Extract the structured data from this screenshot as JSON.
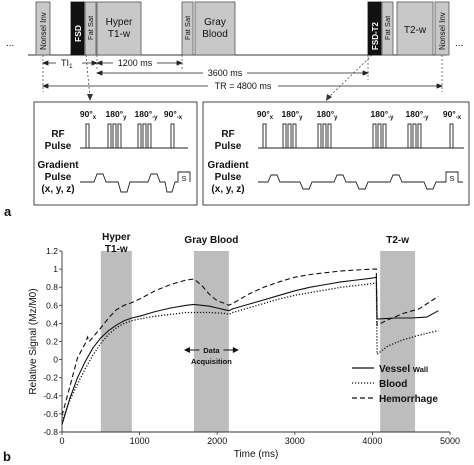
{
  "sequence": {
    "dots_left": "...",
    "dots_right": "...",
    "blocks": [
      {
        "id": "nonsel1",
        "label": "Nonsel Inv",
        "fill": "#c8c8c8",
        "text_color": "#111111",
        "rotated": true
      },
      {
        "id": "fsd1",
        "label": "FSD",
        "fill": "#111111",
        "text_color": "#ffffff",
        "rotated": true
      },
      {
        "id": "fatsat1",
        "label": "Fat Sat",
        "fill": "#c8c8c8",
        "text_color": "#111111",
        "rotated": true
      },
      {
        "id": "hyper",
        "label_line1": "Hyper",
        "label_line2": "T1-w",
        "fill": "#c8c8c8",
        "text_color": "#111111"
      },
      {
        "id": "fatsat2",
        "label": "Fat Sat",
        "fill": "#c8c8c8",
        "text_color": "#111111",
        "rotated": true
      },
      {
        "id": "gray",
        "label_line1": "Gray",
        "label_line2": "Blood",
        "fill": "#c8c8c8",
        "text_color": "#111111"
      },
      {
        "id": "fsdt2",
        "label": "FSD-T2",
        "fill": "#111111",
        "text_color": "#ffffff",
        "rotated": true
      },
      {
        "id": "fatsat3",
        "label": "Fat Sat",
        "fill": "#c8c8c8",
        "text_color": "#111111",
        "rotated": true
      },
      {
        "id": "t2w",
        "label": "T2-w",
        "fill": "#c8c8c8",
        "text_color": "#111111"
      },
      {
        "id": "nonsel2",
        "label": "Nonsel Inv",
        "fill": "#c8c8c8",
        "text_color": "#111111",
        "rotated": true
      }
    ],
    "timing": {
      "ti": "TI",
      "ti_sub": "1",
      "t1200": "1200 ms",
      "t3600": "3600 ms",
      "tr": "TR = 4800 ms"
    }
  },
  "pulse_left": {
    "angles": [
      {
        "deg": "90°",
        "sub": "x"
      },
      {
        "deg": "180°",
        "sub": "y"
      },
      {
        "deg": "180°",
        "sub": "-y"
      },
      {
        "deg": "90°",
        "sub": "-x"
      }
    ],
    "rf_label_1": "RF",
    "rf_label_2": "Pulse",
    "grad_label_1": "Gradient",
    "grad_label_2": "Pulse",
    "grad_label_3": "(x, y, z)",
    "s_label": "S"
  },
  "pulse_right": {
    "angles": [
      {
        "deg": "90°",
        "sub": "x"
      },
      {
        "deg": "180°",
        "sub": "y"
      },
      {
        "deg": "180°",
        "sub": "y"
      },
      {
        "deg": "180°",
        "sub": "-y"
      },
      {
        "deg": "180°",
        "sub": "-y"
      },
      {
        "deg": "90°",
        "sub": "-x"
      }
    ],
    "rf_label_1": "RF",
    "rf_label_2": "Pulse",
    "grad_label_1": "Gradient",
    "grad_label_2": "Pulse",
    "grad_label_3": "(x, y, z)",
    "s_label": "S"
  },
  "panel_a": "a",
  "panel_b": "b",
  "chart_data": {
    "type": "line",
    "xlabel": "Time (ms)",
    "ylabel": "Relative Signal (Mz/M0)",
    "xlim": [
      0,
      5000
    ],
    "ylim": [
      -0.8,
      1.2
    ],
    "xticks": [
      "0",
      "1000",
      "2000",
      "3000",
      "4000",
      "5000"
    ],
    "yticks": [
      "-0.8",
      "-0.6",
      "-0.4",
      "-0.2",
      "0",
      "0.2",
      "0.4",
      "0.6",
      "0.8",
      "1",
      "1.2"
    ],
    "bands": [
      {
        "label_line1": "Hyper",
        "label_line2": "T1-w",
        "x0": 500,
        "x1": 900
      },
      {
        "label_line1": "Gray Blood",
        "label_line2": "",
        "x0": 1700,
        "x1": 2150
      },
      {
        "label_line1": "T2-w",
        "label_line2": "",
        "x0": 4100,
        "x1": 4550
      }
    ],
    "annotation": {
      "line1": "Data",
      "line2": "Acquisition"
    },
    "band_color": "#bdbdbd",
    "series": [
      {
        "name": "Vessel Wall",
        "name_sub": "Wall",
        "name_main": "Vessel",
        "dash": "none",
        "points": [
          [
            0,
            -0.72
          ],
          [
            100,
            -0.43
          ],
          [
            200,
            -0.2
          ],
          [
            300,
            -0.02
          ],
          [
            400,
            0.13
          ],
          [
            500,
            0.24
          ],
          [
            600,
            0.32
          ],
          [
            700,
            0.38
          ],
          [
            800,
            0.43
          ],
          [
            900,
            0.46
          ],
          [
            1000,
            0.48
          ],
          [
            1200,
            0.53
          ],
          [
            1400,
            0.57
          ],
          [
            1600,
            0.6
          ],
          [
            1700,
            0.61
          ],
          [
            1800,
            0.6
          ],
          [
            1900,
            0.59
          ],
          [
            2000,
            0.57
          ],
          [
            2100,
            0.55
          ],
          [
            2150,
            0.54
          ],
          [
            2200,
            0.56
          ],
          [
            2400,
            0.61
          ],
          [
            2600,
            0.66
          ],
          [
            2800,
            0.71
          ],
          [
            3000,
            0.76
          ],
          [
            3200,
            0.8
          ],
          [
            3400,
            0.83
          ],
          [
            3600,
            0.86
          ],
          [
            3800,
            0.88
          ],
          [
            4000,
            0.9
          ],
          [
            4050,
            0.91
          ],
          [
            4060,
            0.45
          ],
          [
            4100,
            0.45
          ],
          [
            4300,
            0.46
          ],
          [
            4500,
            0.46
          ],
          [
            4700,
            0.47
          ],
          [
            4850,
            0.54
          ]
        ]
      },
      {
        "name": "Blood",
        "dash": "1.2,1.8",
        "points": [
          [
            0,
            -0.68
          ],
          [
            100,
            -0.45
          ],
          [
            200,
            -0.27
          ],
          [
            300,
            -0.1
          ],
          [
            400,
            0.05
          ],
          [
            500,
            0.18
          ],
          [
            600,
            0.28
          ],
          [
            700,
            0.35
          ],
          [
            800,
            0.4
          ],
          [
            900,
            0.43
          ],
          [
            1000,
            0.45
          ],
          [
            1200,
            0.48
          ],
          [
            1400,
            0.5
          ],
          [
            1600,
            0.52
          ],
          [
            1700,
            0.52
          ],
          [
            1900,
            0.52
          ],
          [
            2100,
            0.51
          ],
          [
            2150,
            0.5
          ],
          [
            2200,
            0.52
          ],
          [
            2400,
            0.57
          ],
          [
            2600,
            0.62
          ],
          [
            2800,
            0.67
          ],
          [
            3000,
            0.71
          ],
          [
            3200,
            0.74
          ],
          [
            3400,
            0.77
          ],
          [
            3600,
            0.8
          ],
          [
            3800,
            0.82
          ],
          [
            4000,
            0.84
          ],
          [
            4050,
            0.85
          ],
          [
            4060,
            0.06
          ],
          [
            4200,
            0.15
          ],
          [
            4400,
            0.22
          ],
          [
            4600,
            0.27
          ],
          [
            4850,
            0.32
          ]
        ]
      },
      {
        "name": "Hemorrhage",
        "dash": "5,3",
        "points": [
          [
            0,
            -0.62
          ],
          [
            100,
            -0.3
          ],
          [
            200,
            0.02
          ],
          [
            300,
            0.18
          ],
          [
            330,
            0.25
          ],
          [
            350,
            0.2
          ],
          [
            450,
            0.3
          ],
          [
            500,
            0.35
          ],
          [
            600,
            0.46
          ],
          [
            700,
            0.55
          ],
          [
            800,
            0.6
          ],
          [
            900,
            0.63
          ],
          [
            1000,
            0.67
          ],
          [
            1200,
            0.76
          ],
          [
            1400,
            0.83
          ],
          [
            1600,
            0.88
          ],
          [
            1700,
            0.89
          ],
          [
            1800,
            0.82
          ],
          [
            1900,
            0.72
          ],
          [
            2000,
            0.65
          ],
          [
            2100,
            0.62
          ],
          [
            2150,
            0.6
          ],
          [
            2200,
            0.62
          ],
          [
            2400,
            0.72
          ],
          [
            2600,
            0.8
          ],
          [
            2800,
            0.86
          ],
          [
            3000,
            0.91
          ],
          [
            3200,
            0.94
          ],
          [
            3400,
            0.96
          ],
          [
            3600,
            0.98
          ],
          [
            3800,
            0.99
          ],
          [
            4000,
            1.0
          ],
          [
            4050,
            1.0
          ],
          [
            4060,
            0.38
          ],
          [
            4200,
            0.44
          ],
          [
            4400,
            0.51
          ],
          [
            4600,
            0.56
          ],
          [
            4850,
            0.7
          ]
        ]
      }
    ],
    "legend_position": "right"
  }
}
